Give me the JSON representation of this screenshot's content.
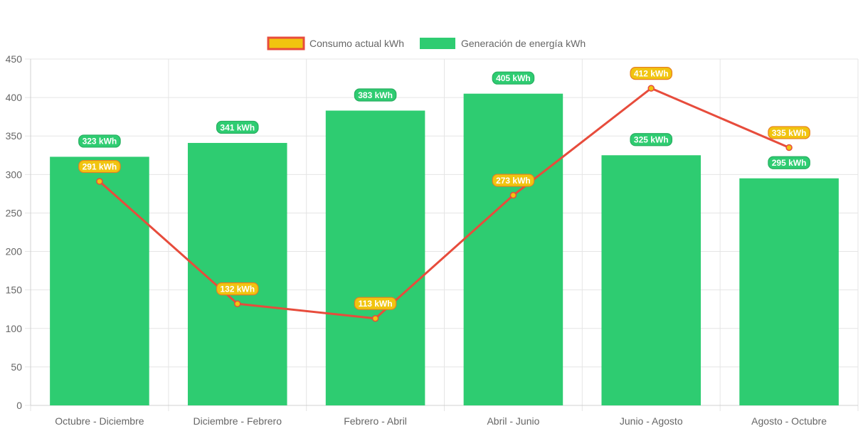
{
  "chart_data": {
    "type": "bar",
    "categories": [
      "Octubre - Diciembre",
      "Diciembre - Febrero",
      "Febrero - Abril",
      "Abril - Junio",
      "Junio - Agosto",
      "Agosto - Octubre"
    ],
    "series": [
      {
        "name": "Consumo actual kWh",
        "type": "line",
        "values": [
          291,
          132,
          113,
          273,
          412,
          335
        ],
        "labels": [
          "291 kWh",
          "132 kWh",
          "113 kWh",
          "273 kWh",
          "412 kWh",
          "335 kWh"
        ],
        "color": "#e74c3c",
        "fill": "#f1c40f"
      },
      {
        "name": "Generación de energía kWh",
        "type": "bar",
        "values": [
          323,
          341,
          383,
          405,
          325,
          295
        ],
        "labels": [
          "323 kWh",
          "341 kWh",
          "383 kWh",
          "405 kWh",
          "325 kWh",
          "295 kWh"
        ],
        "color": "#2ecc71"
      }
    ],
    "ylim": [
      0,
      450
    ],
    "yticks": [
      "0",
      "50",
      "100",
      "150",
      "200",
      "250",
      "300",
      "350",
      "400",
      "450"
    ],
    "grid": true,
    "legend_position": "top-center",
    "title": "",
    "xlabel": "",
    "ylabel": ""
  }
}
